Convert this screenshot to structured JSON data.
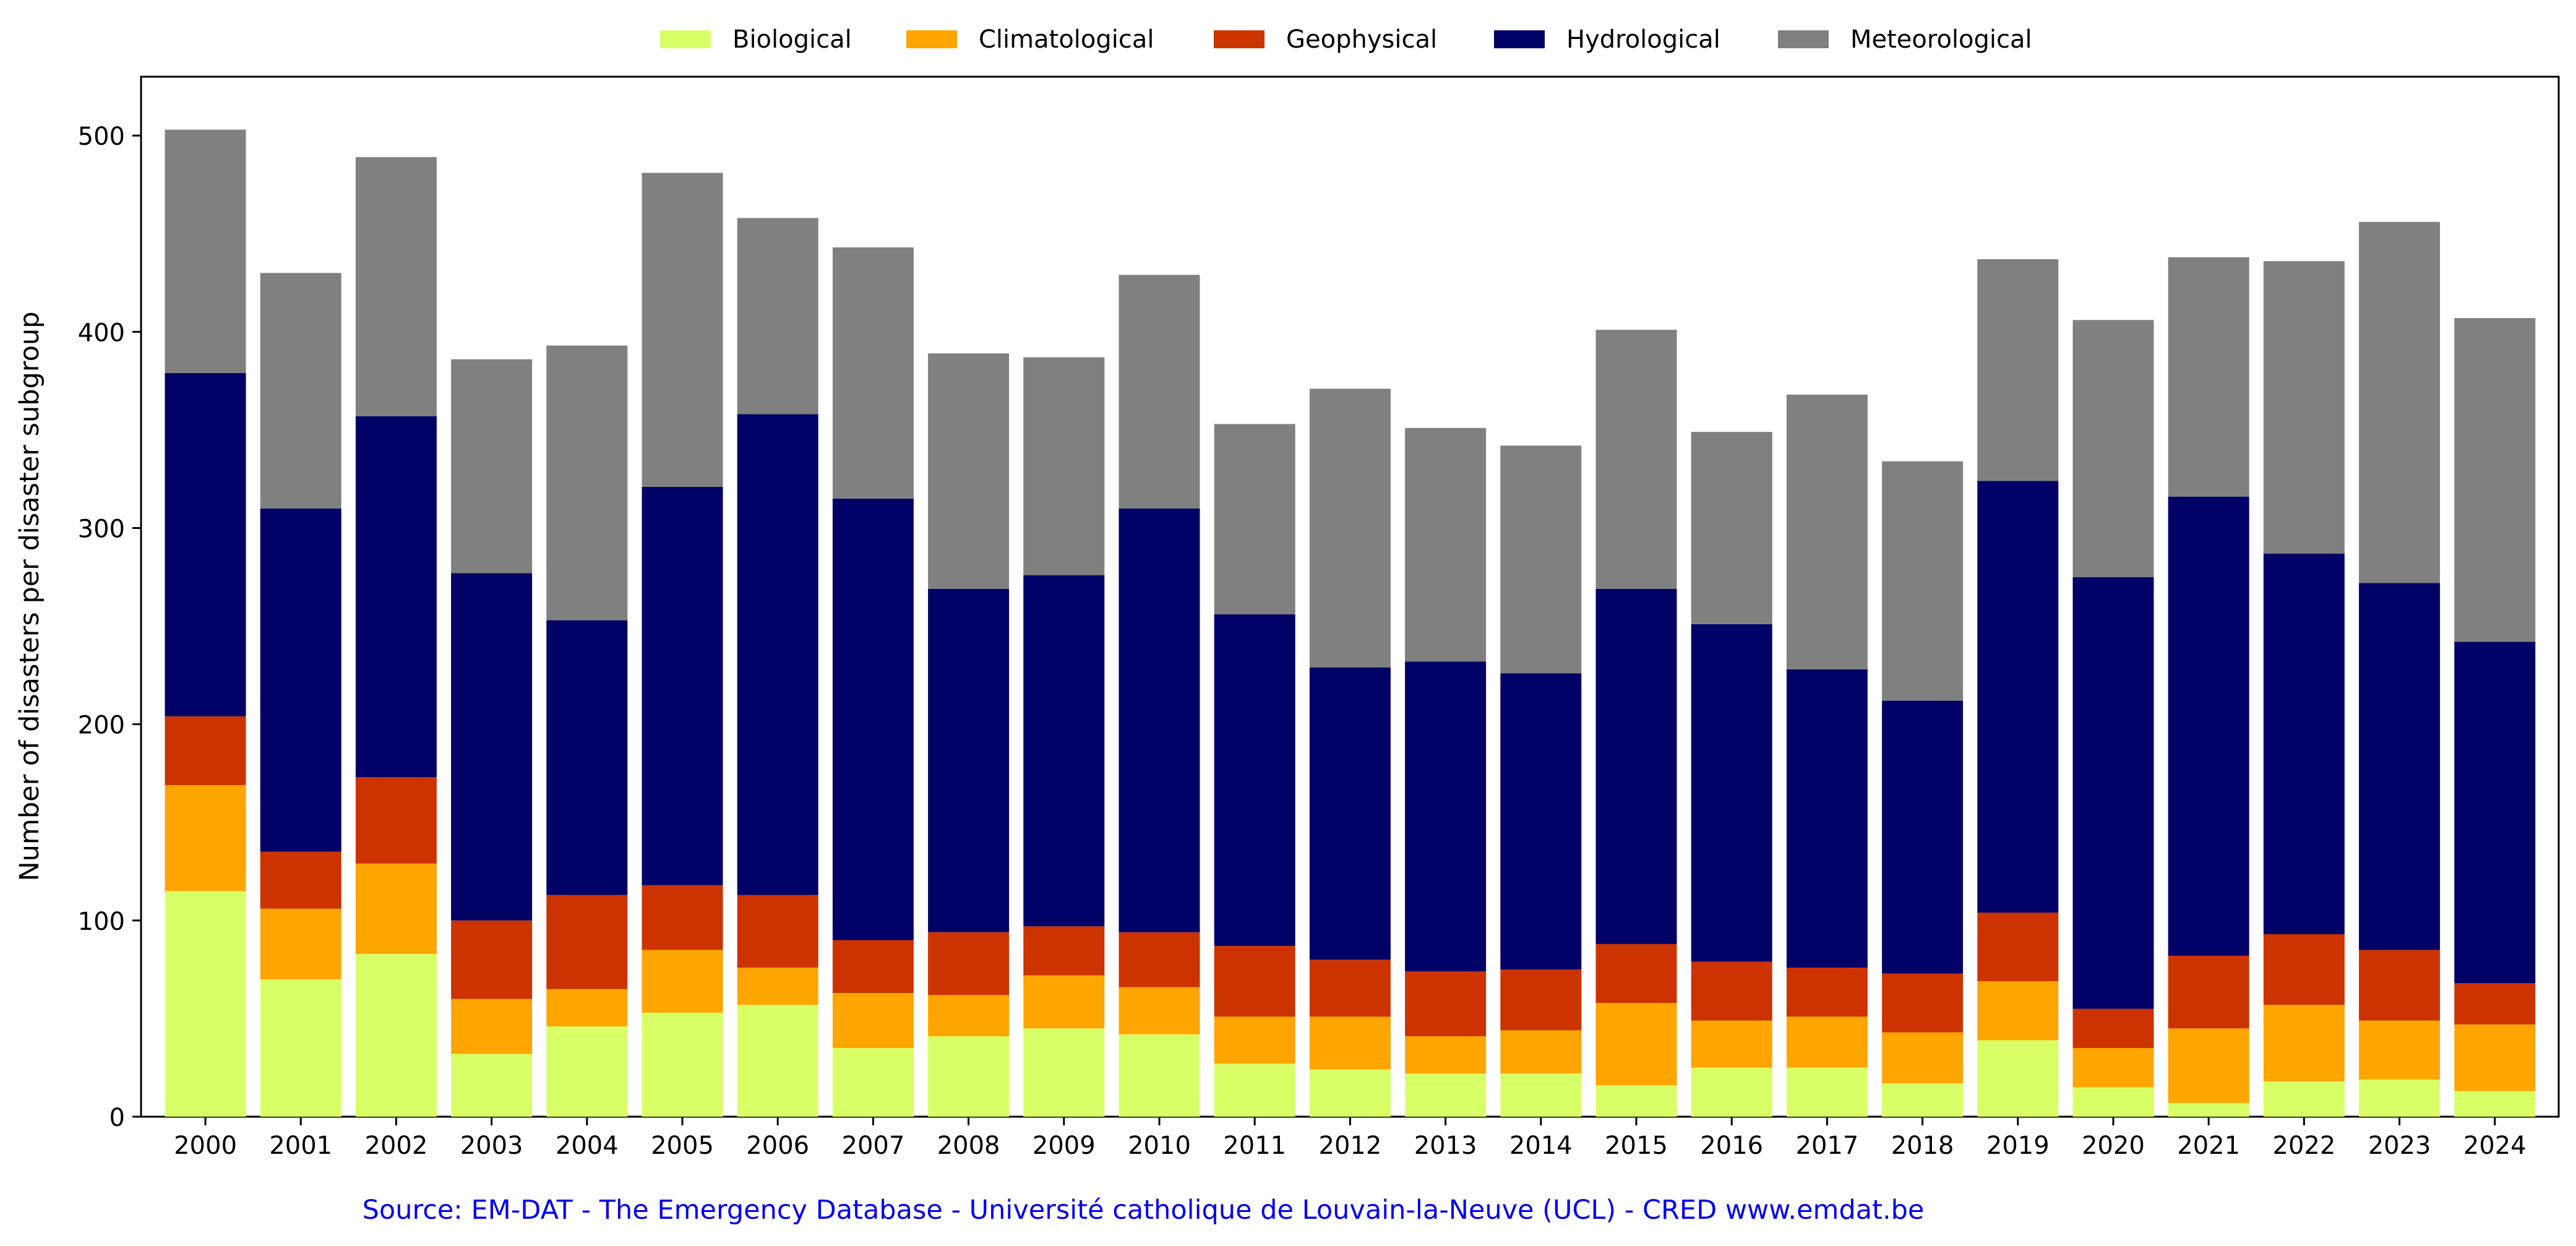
{
  "chart_data": {
    "type": "bar",
    "stacked": true,
    "title": "",
    "xlabel": "",
    "ylabel": "Number of disasters per disaster subgroup",
    "ylim": [
      0,
      530
    ],
    "yticks": [
      0,
      100,
      200,
      300,
      400,
      500
    ],
    "grid": false,
    "legend_position": "top-center",
    "categories": [
      "2000",
      "2001",
      "2002",
      "2003",
      "2004",
      "2005",
      "2006",
      "2007",
      "2008",
      "2009",
      "2010",
      "2011",
      "2012",
      "2013",
      "2014",
      "2015",
      "2016",
      "2017",
      "2018",
      "2019",
      "2020",
      "2021",
      "2022",
      "2023",
      "2024"
    ],
    "series": [
      {
        "name": "Biological",
        "color": "#d9ff66",
        "values": [
          115,
          70,
          83,
          32,
          46,
          53,
          57,
          35,
          41,
          45,
          42,
          27,
          24,
          22,
          22,
          16,
          25,
          25,
          17,
          39,
          15,
          7,
          18,
          19,
          13
        ]
      },
      {
        "name": "Climatological",
        "color": "#ffa500",
        "values": [
          54,
          36,
          46,
          28,
          19,
          32,
          19,
          28,
          21,
          27,
          24,
          24,
          27,
          19,
          22,
          42,
          24,
          26,
          26,
          30,
          20,
          38,
          39,
          30,
          34
        ]
      },
      {
        "name": "Geophysical",
        "color": "#cc3300",
        "values": [
          35,
          29,
          44,
          40,
          48,
          33,
          37,
          27,
          32,
          25,
          28,
          36,
          29,
          33,
          31,
          30,
          30,
          25,
          30,
          35,
          20,
          37,
          36,
          36,
          21
        ]
      },
      {
        "name": "Hydrological",
        "color": "#000066",
        "values": [
          175,
          175,
          184,
          177,
          140,
          203,
          245,
          225,
          175,
          179,
          216,
          169,
          149,
          158,
          151,
          181,
          172,
          152,
          139,
          220,
          220,
          234,
          194,
          187,
          174
        ]
      },
      {
        "name": "Meteorological",
        "color": "#808080",
        "values": [
          124,
          120,
          132,
          109,
          140,
          160,
          100,
          128,
          120,
          111,
          119,
          97,
          142,
          119,
          116,
          132,
          98,
          140,
          122,
          113,
          131,
          122,
          149,
          184,
          165
        ]
      }
    ]
  },
  "source_note": "Source: EM-DAT - The Emergency Database - Université catholique de Louvain-la-Neuve (UCL) - CRED www.emdat.be",
  "colors": {
    "source_note": "#0000ee",
    "axis": "#000000"
  }
}
